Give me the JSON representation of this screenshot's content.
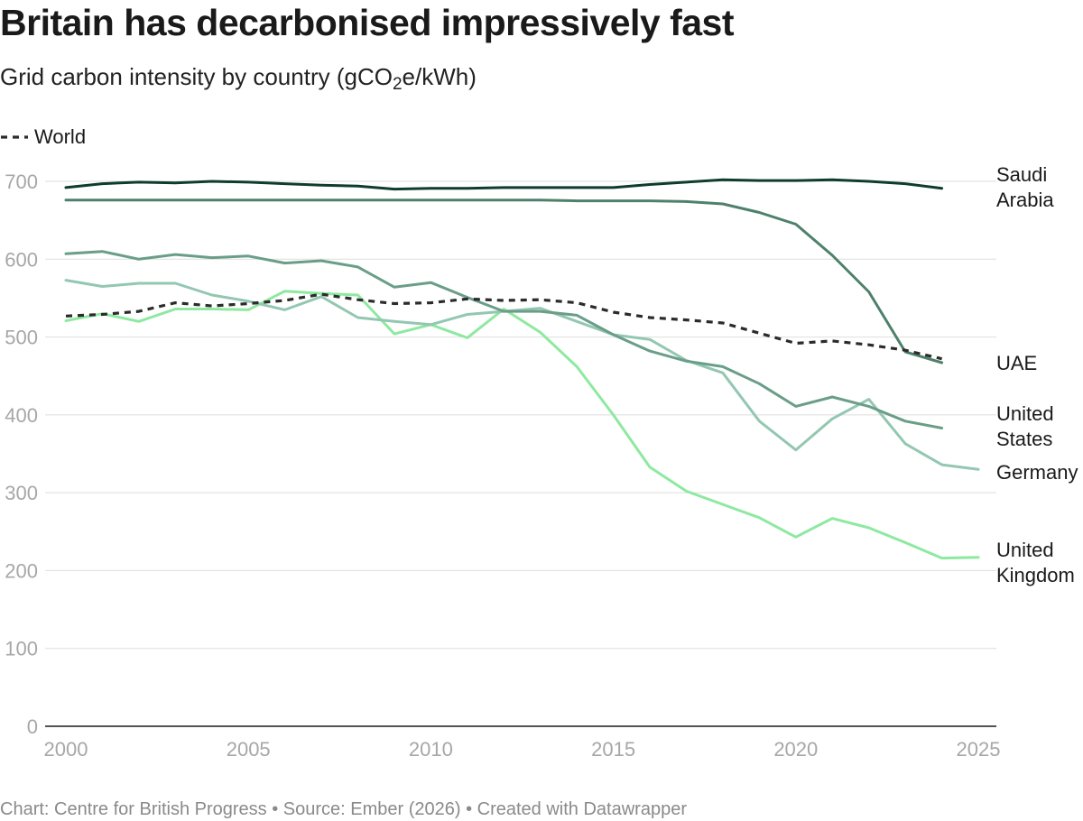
{
  "title": "Britain has decarbonised impressively fast",
  "subtitle": {
    "pre": "Grid carbon intensity by country (gCO",
    "sub": "2",
    "post": "e/kWh)"
  },
  "legend": {
    "label": "World"
  },
  "footer": "Chart: Centre for British Progress • Source: Ember (2026) • Created with Datawrapper",
  "chart_data": {
    "type": "line",
    "title": "Britain has decarbonised impressively fast",
    "subtitle": "Grid carbon intensity by country (gCO2e/kWh)",
    "xlabel": "",
    "ylabel": "",
    "xlim": [
      2000,
      2025
    ],
    "ylim": [
      0,
      700
    ],
    "x_ticks": [
      2000,
      2005,
      2010,
      2015,
      2020,
      2025
    ],
    "y_ticks": [
      0,
      100,
      200,
      300,
      400,
      500,
      600,
      700
    ],
    "grid": true,
    "legend_position": "top-left",
    "series": [
      {
        "name": "Saudi Arabia",
        "label_lines": [
          "Saudi",
          "Arabia"
        ],
        "color": "#0f3d2c",
        "dashed": false,
        "x": [
          2000,
          2001,
          2002,
          2003,
          2004,
          2005,
          2006,
          2007,
          2008,
          2009,
          2010,
          2011,
          2012,
          2013,
          2014,
          2015,
          2016,
          2017,
          2018,
          2019,
          2020,
          2021,
          2022,
          2023,
          2024
        ],
        "values": [
          692,
          697,
          699,
          698,
          700,
          699,
          697,
          695,
          694,
          690,
          691,
          691,
          692,
          692,
          692,
          692,
          696,
          699,
          702,
          701,
          701,
          702,
          700,
          697,
          691
        ]
      },
      {
        "name": "UAE",
        "label_lines": [
          "UAE"
        ],
        "color": "#4e806b",
        "dashed": false,
        "x": [
          2000,
          2001,
          2002,
          2003,
          2004,
          2005,
          2006,
          2007,
          2008,
          2009,
          2010,
          2011,
          2012,
          2013,
          2014,
          2015,
          2016,
          2017,
          2018,
          2019,
          2020,
          2021,
          2022,
          2023,
          2024
        ],
        "values": [
          676,
          676,
          676,
          676,
          676,
          676,
          676,
          676,
          676,
          676,
          676,
          676,
          676,
          676,
          675,
          675,
          675,
          674,
          671,
          660,
          645,
          605,
          558,
          481,
          467
        ]
      },
      {
        "name": "United States",
        "label_lines": [
          "United",
          "States"
        ],
        "color": "#6a9e88",
        "dashed": false,
        "x": [
          2000,
          2001,
          2002,
          2003,
          2004,
          2005,
          2006,
          2007,
          2008,
          2009,
          2010,
          2011,
          2012,
          2013,
          2014,
          2015,
          2016,
          2017,
          2018,
          2019,
          2020,
          2021,
          2022,
          2023,
          2024
        ],
        "values": [
          607,
          610,
          600,
          606,
          602,
          604,
          595,
          598,
          590,
          564,
          570,
          551,
          533,
          533,
          528,
          503,
          482,
          469,
          462,
          440,
          411,
          423,
          411,
          392,
          383
        ]
      },
      {
        "name": "Germany",
        "label_lines": [
          "Germany"
        ],
        "color": "#93c7b2",
        "dashed": false,
        "x": [
          2000,
          2001,
          2002,
          2003,
          2004,
          2005,
          2006,
          2007,
          2008,
          2009,
          2010,
          2011,
          2012,
          2013,
          2014,
          2015,
          2016,
          2017,
          2018,
          2019,
          2020,
          2021,
          2022,
          2023,
          2024,
          2025
        ],
        "values": [
          573,
          565,
          569,
          569,
          554,
          546,
          535,
          552,
          525,
          520,
          516,
          529,
          533,
          537,
          520,
          503,
          497,
          470,
          454,
          392,
          355,
          395,
          420,
          363,
          336,
          330
        ]
      },
      {
        "name": "United Kingdom",
        "label_lines": [
          "United",
          "Kingdom"
        ],
        "color": "#8ee9a0",
        "dashed": false,
        "x": [
          2000,
          2001,
          2002,
          2003,
          2004,
          2005,
          2006,
          2007,
          2008,
          2009,
          2010,
          2011,
          2012,
          2013,
          2014,
          2015,
          2016,
          2017,
          2018,
          2019,
          2020,
          2021,
          2022,
          2023,
          2024,
          2025
        ],
        "values": [
          521,
          530,
          520,
          536,
          536,
          535,
          559,
          556,
          554,
          504,
          516,
          499,
          536,
          506,
          462,
          400,
          333,
          302,
          285,
          268,
          243,
          267,
          255,
          236,
          216,
          217
        ]
      },
      {
        "name": "World",
        "label_lines": [],
        "color": "#2b2b2b",
        "dashed": true,
        "x": [
          2000,
          2001,
          2002,
          2003,
          2004,
          2005,
          2006,
          2007,
          2008,
          2009,
          2010,
          2011,
          2012,
          2013,
          2014,
          2015,
          2016,
          2017,
          2018,
          2019,
          2020,
          2021,
          2022,
          2023,
          2024
        ],
        "values": [
          527,
          529,
          533,
          544,
          540,
          543,
          547,
          555,
          548,
          543,
          544,
          549,
          547,
          548,
          544,
          532,
          525,
          522,
          518,
          505,
          492,
          495,
          490,
          483,
          472
        ]
      }
    ],
    "end_labels": [
      {
        "series": "Saudi Arabia",
        "lines": [
          "Saudi",
          "Arabia"
        ],
        "anchor_value": 693
      },
      {
        "series": "UAE",
        "lines": [
          "UAE"
        ],
        "anchor_value": 467
      },
      {
        "series": "United States",
        "lines": [
          "United",
          "States"
        ],
        "anchor_value": 386
      },
      {
        "series": "Germany",
        "lines": [
          "Germany"
        ],
        "anchor_value": 327
      },
      {
        "series": "United Kingdom",
        "lines": [
          "United",
          "Kingdom"
        ],
        "anchor_value": 211
      }
    ]
  }
}
